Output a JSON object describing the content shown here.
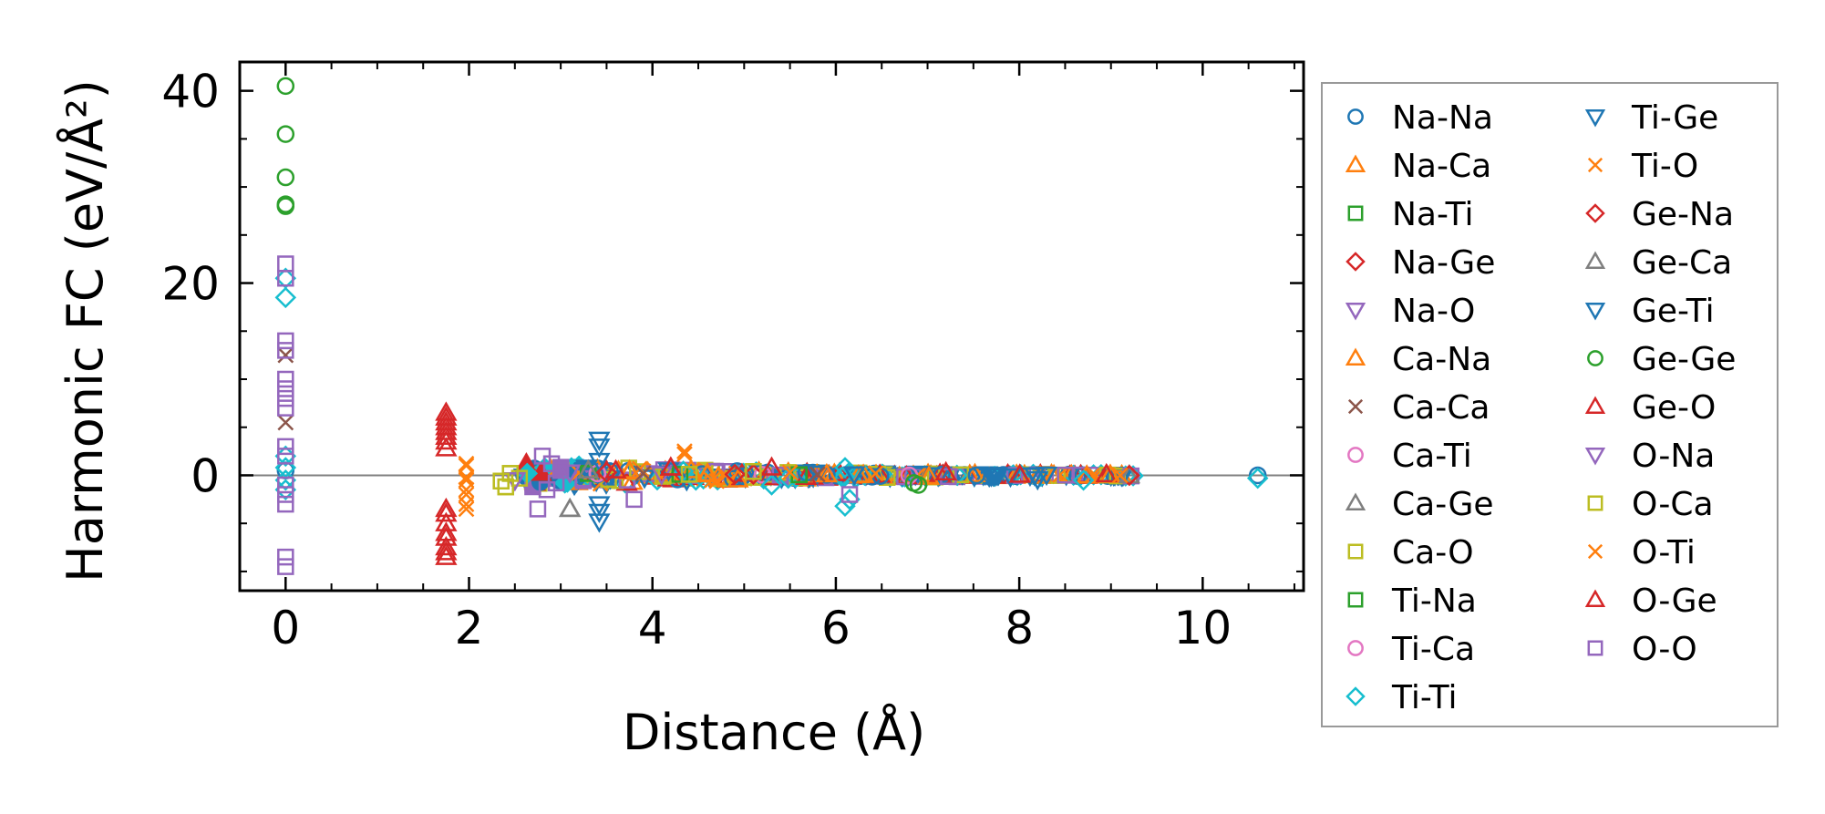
{
  "chart_data": {
    "type": "scatter",
    "xlabel": "Distance (Å)",
    "ylabel": "Harmonic FC (eV/Å²)",
    "xlim": [
      -0.5,
      11.1
    ],
    "ylim": [
      -12,
      43
    ],
    "xticks": [
      0,
      2,
      4,
      6,
      8,
      10
    ],
    "yticks": [
      0,
      20,
      40
    ],
    "zero_line": true,
    "grid": false,
    "legend_position": "right, outside plot",
    "series": [
      {
        "name": "Na-Na",
        "marker": "circle",
        "color": "#1f77b4",
        "points": [
          [
            0,
            0.5
          ],
          [
            3.4,
            0.1
          ],
          [
            5.9,
            0.05
          ],
          [
            10.6,
            0.0
          ]
        ]
      },
      {
        "name": "Na-Ca",
        "marker": "triangle-up",
        "color": "#ff7f0e",
        "points": [
          [
            3.75,
            0.4
          ],
          [
            4.6,
            0.2
          ],
          [
            5.9,
            0.1
          ]
        ]
      },
      {
        "name": "Na-Ti",
        "marker": "square",
        "color": "#2ca02c",
        "points": [
          [
            3.3,
            0.2
          ],
          [
            4.3,
            0.1
          ],
          [
            5.6,
            0.05
          ]
        ]
      },
      {
        "name": "Na-Ge",
        "marker": "diamond",
        "color": "#d62728",
        "points": [
          [
            3.5,
            0.3
          ],
          [
            4.9,
            0.1
          ],
          [
            9.2,
            0.0
          ]
        ]
      },
      {
        "name": "Na-O",
        "marker": "triangle-down",
        "color": "#9467bd",
        "points": [
          [
            2.5,
            -0.5
          ],
          [
            3.1,
            0.3
          ],
          [
            4.1,
            0.1
          ]
        ]
      },
      {
        "name": "Ca-Na",
        "marker": "triangle-up",
        "color": "#ff7f0e",
        "points": [
          [
            3.75,
            0.5
          ],
          [
            4.6,
            0.1
          ],
          [
            6.3,
            0.05
          ]
        ]
      },
      {
        "name": "Ca-Ca",
        "marker": "x",
        "color": "#8c564b",
        "points": [
          [
            0,
            12.5
          ],
          [
            0,
            5.5
          ],
          [
            3.9,
            0.2
          ],
          [
            5.8,
            0.1
          ]
        ]
      },
      {
        "name": "Ca-Ti",
        "marker": "circle",
        "color": "#e377c2",
        "points": [
          [
            3.4,
            0.2
          ],
          [
            5.2,
            0.05
          ]
        ]
      },
      {
        "name": "Ca-Ge",
        "marker": "triangle-up",
        "color": "#7f7f7f",
        "points": [
          [
            3.1,
            -3.5
          ],
          [
            3.3,
            0.5
          ],
          [
            9.2,
            0.0
          ]
        ]
      },
      {
        "name": "Ca-O",
        "marker": "square",
        "color": "#bcbd22",
        "points": [
          [
            2.35,
            -0.6
          ],
          [
            2.4,
            -1.2
          ],
          [
            2.45,
            0.2
          ],
          [
            2.55,
            -0.3
          ],
          [
            4.4,
            0.1
          ]
        ]
      },
      {
        "name": "Ti-Na",
        "marker": "square",
        "color": "#2ca02c",
        "points": [
          [
            3.3,
            0.2
          ],
          [
            5.6,
            0.05
          ]
        ]
      },
      {
        "name": "Ti-Ca",
        "marker": "circle",
        "color": "#e377c2",
        "points": [
          [
            3.4,
            0.2
          ],
          [
            6.8,
            0.0
          ]
        ]
      },
      {
        "name": "Ti-Ti",
        "marker": "diamond",
        "color": "#17becf",
        "points": [
          [
            0,
            20.5
          ],
          [
            0,
            18.5
          ],
          [
            0,
            2.0
          ],
          [
            0,
            0.8
          ],
          [
            0,
            -0.5
          ],
          [
            0,
            -1.5
          ],
          [
            5.3,
            -1.0
          ],
          [
            6.1,
            0.8
          ],
          [
            6.1,
            -3.2
          ],
          [
            6.15,
            -2.5
          ],
          [
            8.7,
            -0.5
          ],
          [
            10.6,
            -0.3
          ]
        ]
      },
      {
        "name": "Ti-Ge",
        "marker": "triangle-down",
        "color": "#1f77b4",
        "points": [
          [
            3.42,
            3.7
          ],
          [
            3.42,
            1.5
          ],
          [
            3.42,
            -3.0
          ],
          [
            3.42,
            -4.8
          ],
          [
            6.2,
            0.1
          ],
          [
            8.2,
            -0.4
          ]
        ]
      },
      {
        "name": "Ti-O",
        "marker": "x",
        "color": "#ff7f0e",
        "points": [
          [
            1.97,
            1.2
          ],
          [
            1.97,
            -0.2
          ],
          [
            1.97,
            -1.5
          ],
          [
            1.97,
            -3.0
          ],
          [
            4.35,
            2.5
          ],
          [
            4.7,
            -0.6
          ],
          [
            5.5,
            0.3
          ]
        ]
      },
      {
        "name": "Ge-Na",
        "marker": "diamond",
        "color": "#d62728",
        "points": [
          [
            3.5,
            0.3
          ],
          [
            5.1,
            0.1
          ],
          [
            9.2,
            0.0
          ]
        ]
      },
      {
        "name": "Ge-Ca",
        "marker": "triangle-up",
        "color": "#7f7f7f",
        "points": [
          [
            3.1,
            -3.5
          ],
          [
            3.3,
            0.5
          ]
        ]
      },
      {
        "name": "Ge-Ti",
        "marker": "triangle-down",
        "color": "#1f77b4",
        "points": [
          [
            3.42,
            3.0
          ],
          [
            3.42,
            -3.8
          ],
          [
            6.2,
            0.1
          ]
        ]
      },
      {
        "name": "Ge-Ge",
        "marker": "circle",
        "color": "#2ca02c",
        "points": [
          [
            0,
            40.5
          ],
          [
            0,
            35.5
          ],
          [
            0,
            31.0
          ],
          [
            0,
            28.2
          ],
          [
            0,
            28.0
          ],
          [
            6.9,
            -1.0
          ],
          [
            6.85,
            -0.8
          ]
        ]
      },
      {
        "name": "Ge-O",
        "marker": "triangle-up",
        "color": "#d62728",
        "points": [
          [
            1.75,
            6.5
          ],
          [
            1.75,
            5.5
          ],
          [
            1.75,
            4.5
          ],
          [
            1.75,
            3.5
          ],
          [
            1.75,
            2.8
          ],
          [
            1.75,
            -3.5
          ],
          [
            1.75,
            -5.0
          ],
          [
            1.75,
            -6.5
          ],
          [
            1.75,
            -8.0
          ],
          [
            3.6,
            0.5
          ],
          [
            4.2,
            0.8
          ],
          [
            5.3,
            0.8
          ],
          [
            7.2,
            0.3
          ],
          [
            8.95,
            0.1
          ]
        ]
      },
      {
        "name": "O-Na",
        "marker": "triangle-down",
        "color": "#9467bd",
        "points": [
          [
            2.5,
            -0.5
          ],
          [
            3.1,
            0.3
          ]
        ]
      },
      {
        "name": "O-Ca",
        "marker": "square",
        "color": "#bcbd22",
        "points": [
          [
            2.35,
            -0.6
          ],
          [
            2.4,
            -1.2
          ],
          [
            2.45,
            0.2
          ],
          [
            5.1,
            0.4
          ]
        ]
      },
      {
        "name": "O-Ti",
        "marker": "x",
        "color": "#ff7f0e",
        "points": [
          [
            1.97,
            1.0
          ],
          [
            1.97,
            -0.5
          ],
          [
            1.97,
            -2.0
          ],
          [
            1.97,
            -3.5
          ],
          [
            4.35,
            2.2
          ],
          [
            4.65,
            -0.5
          ],
          [
            9.1,
            0.0
          ]
        ]
      },
      {
        "name": "O-Ge",
        "marker": "triangle-up",
        "color": "#d62728",
        "points": [
          [
            1.75,
            6.0
          ],
          [
            1.75,
            5.0
          ],
          [
            1.75,
            4.0
          ],
          [
            1.75,
            -4.0
          ],
          [
            1.75,
            -6.0
          ],
          [
            1.75,
            -7.5
          ],
          [
            1.75,
            -8.5
          ],
          [
            4.2,
            0.8
          ]
        ]
      },
      {
        "name": "O-O",
        "marker": "square",
        "color": "#9467bd",
        "points": [
          [
            0,
            22.0
          ],
          [
            0,
            20.5
          ],
          [
            0,
            14.0
          ],
          [
            0,
            13.0
          ],
          [
            0,
            10.0
          ],
          [
            0,
            9.0
          ],
          [
            0,
            8.0
          ],
          [
            0,
            7.0
          ],
          [
            0,
            3.0
          ],
          [
            0,
            2.0
          ],
          [
            0,
            -1.0
          ],
          [
            0,
            -2.0
          ],
          [
            0,
            -3.0
          ],
          [
            0,
            -8.5
          ],
          [
            0,
            -9.5
          ],
          [
            2.75,
            -3.5
          ],
          [
            2.8,
            2.0
          ],
          [
            2.85,
            -1.5
          ],
          [
            2.9,
            1.2
          ],
          [
            2.95,
            -0.8
          ],
          [
            3.0,
            0.5
          ],
          [
            3.8,
            -2.5
          ],
          [
            6.15,
            -2.0
          ]
        ]
      }
    ]
  }
}
